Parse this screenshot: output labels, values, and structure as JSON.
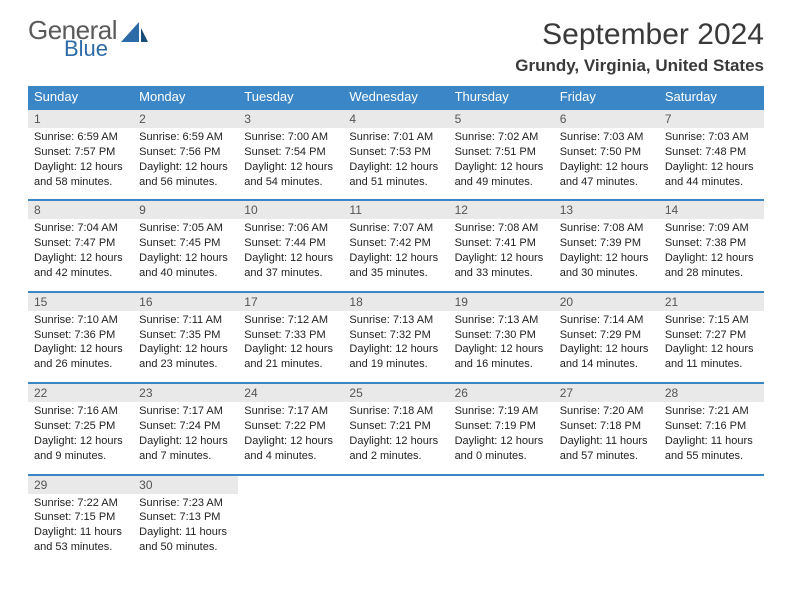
{
  "logo": {
    "general": "General",
    "blue": "Blue"
  },
  "header": {
    "month_title": "September 2024",
    "location": "Grundy, Virginia, United States"
  },
  "colors": {
    "header_bg": "#3b86c6",
    "header_text": "#ffffff",
    "date_bg": "#e9e9e9",
    "row_border": "#3b86c6",
    "logo_gray": "#5a5a5a",
    "logo_blue": "#2d6aa8"
  },
  "day_headers": [
    "Sunday",
    "Monday",
    "Tuesday",
    "Wednesday",
    "Thursday",
    "Friday",
    "Saturday"
  ],
  "days": [
    {
      "n": 1,
      "sr": "6:59 AM",
      "ss": "7:57 PM",
      "dl": "12 hours and 58 minutes."
    },
    {
      "n": 2,
      "sr": "6:59 AM",
      "ss": "7:56 PM",
      "dl": "12 hours and 56 minutes."
    },
    {
      "n": 3,
      "sr": "7:00 AM",
      "ss": "7:54 PM",
      "dl": "12 hours and 54 minutes."
    },
    {
      "n": 4,
      "sr": "7:01 AM",
      "ss": "7:53 PM",
      "dl": "12 hours and 51 minutes."
    },
    {
      "n": 5,
      "sr": "7:02 AM",
      "ss": "7:51 PM",
      "dl": "12 hours and 49 minutes."
    },
    {
      "n": 6,
      "sr": "7:03 AM",
      "ss": "7:50 PM",
      "dl": "12 hours and 47 minutes."
    },
    {
      "n": 7,
      "sr": "7:03 AM",
      "ss": "7:48 PM",
      "dl": "12 hours and 44 minutes."
    },
    {
      "n": 8,
      "sr": "7:04 AM",
      "ss": "7:47 PM",
      "dl": "12 hours and 42 minutes."
    },
    {
      "n": 9,
      "sr": "7:05 AM",
      "ss": "7:45 PM",
      "dl": "12 hours and 40 minutes."
    },
    {
      "n": 10,
      "sr": "7:06 AM",
      "ss": "7:44 PM",
      "dl": "12 hours and 37 minutes."
    },
    {
      "n": 11,
      "sr": "7:07 AM",
      "ss": "7:42 PM",
      "dl": "12 hours and 35 minutes."
    },
    {
      "n": 12,
      "sr": "7:08 AM",
      "ss": "7:41 PM",
      "dl": "12 hours and 33 minutes."
    },
    {
      "n": 13,
      "sr": "7:08 AM",
      "ss": "7:39 PM",
      "dl": "12 hours and 30 minutes."
    },
    {
      "n": 14,
      "sr": "7:09 AM",
      "ss": "7:38 PM",
      "dl": "12 hours and 28 minutes."
    },
    {
      "n": 15,
      "sr": "7:10 AM",
      "ss": "7:36 PM",
      "dl": "12 hours and 26 minutes."
    },
    {
      "n": 16,
      "sr": "7:11 AM",
      "ss": "7:35 PM",
      "dl": "12 hours and 23 minutes."
    },
    {
      "n": 17,
      "sr": "7:12 AM",
      "ss": "7:33 PM",
      "dl": "12 hours and 21 minutes."
    },
    {
      "n": 18,
      "sr": "7:13 AM",
      "ss": "7:32 PM",
      "dl": "12 hours and 19 minutes."
    },
    {
      "n": 19,
      "sr": "7:13 AM",
      "ss": "7:30 PM",
      "dl": "12 hours and 16 minutes."
    },
    {
      "n": 20,
      "sr": "7:14 AM",
      "ss": "7:29 PM",
      "dl": "12 hours and 14 minutes."
    },
    {
      "n": 21,
      "sr": "7:15 AM",
      "ss": "7:27 PM",
      "dl": "12 hours and 11 minutes."
    },
    {
      "n": 22,
      "sr": "7:16 AM",
      "ss": "7:25 PM",
      "dl": "12 hours and 9 minutes."
    },
    {
      "n": 23,
      "sr": "7:17 AM",
      "ss": "7:24 PM",
      "dl": "12 hours and 7 minutes."
    },
    {
      "n": 24,
      "sr": "7:17 AM",
      "ss": "7:22 PM",
      "dl": "12 hours and 4 minutes."
    },
    {
      "n": 25,
      "sr": "7:18 AM",
      "ss": "7:21 PM",
      "dl": "12 hours and 2 minutes."
    },
    {
      "n": 26,
      "sr": "7:19 AM",
      "ss": "7:19 PM",
      "dl": "12 hours and 0 minutes."
    },
    {
      "n": 27,
      "sr": "7:20 AM",
      "ss": "7:18 PM",
      "dl": "11 hours and 57 minutes."
    },
    {
      "n": 28,
      "sr": "7:21 AM",
      "ss": "7:16 PM",
      "dl": "11 hours and 55 minutes."
    },
    {
      "n": 29,
      "sr": "7:22 AM",
      "ss": "7:15 PM",
      "dl": "11 hours and 53 minutes."
    },
    {
      "n": 30,
      "sr": "7:23 AM",
      "ss": "7:13 PM",
      "dl": "11 hours and 50 minutes."
    }
  ],
  "labels": {
    "sunrise": "Sunrise:",
    "sunset": "Sunset:",
    "daylight": "Daylight:"
  },
  "layout": {
    "start_weekday": 0,
    "total_cells": 35
  }
}
